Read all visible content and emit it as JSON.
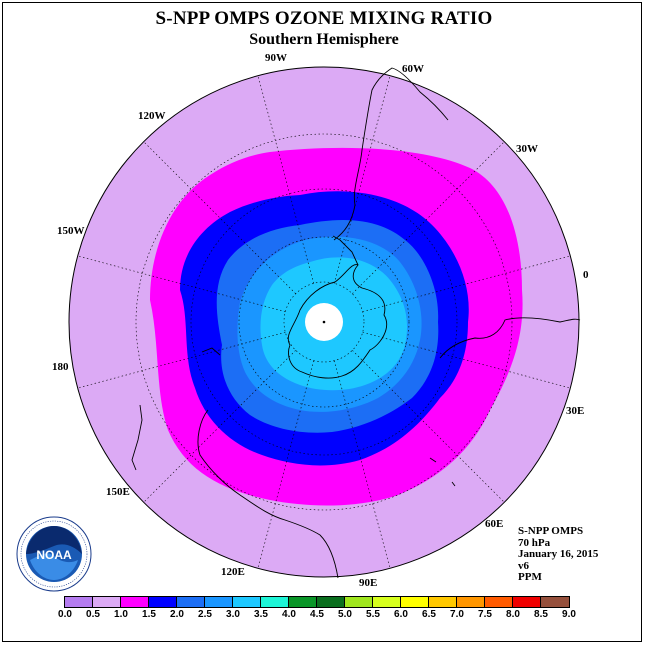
{
  "header": {
    "title": "S-NPP OMPS OZONE MIXING RATIO",
    "subtitle": "Southern Hemisphere"
  },
  "map": {
    "projection": "south-polar-stereographic",
    "longitude_labels": [
      {
        "id": "90w",
        "text": "90W"
      },
      {
        "id": "60w",
        "text": "60W"
      },
      {
        "id": "120w",
        "text": "120W"
      },
      {
        "id": "30w",
        "text": "30W"
      },
      {
        "id": "150w",
        "text": "150W"
      },
      {
        "id": "0",
        "text": "0"
      },
      {
        "id": "180",
        "text": "180"
      },
      {
        "id": "30e",
        "text": "30E"
      },
      {
        "id": "150e",
        "text": "150E"
      },
      {
        "id": "60e",
        "text": "60E"
      },
      {
        "id": "120e",
        "text": "120E"
      },
      {
        "id": "90e",
        "text": "90E"
      }
    ],
    "colors": {
      "band_0_5_to_1_0": "#dcaaf5",
      "band_1_0_to_1_5": "#ff00ff",
      "band_1_5_to_2_0": "#0000ff",
      "band_2_0_to_2_5": "#1c6ef5",
      "band_2_5_to_3_0": "#1a96ff",
      "band_3_0_to_3_5": "#1ec8ff",
      "polar_night": "#ffffff"
    }
  },
  "info": {
    "lines": [
      "S-NPP OMPS",
      "70 hPa",
      "January 16, 2015",
      "v6",
      "PPM"
    ]
  },
  "logo": {
    "text": "NOAA",
    "ring_text": "NATIONAL OCEANIC AND ATMOSPHERIC ADMINISTRATION · U.S. DEPARTMENT OF COMMERCE"
  },
  "colorbar": {
    "unit": "PPM",
    "colors": [
      "#b57cf0",
      "#dcaaf5",
      "#ff00ff",
      "#0000ff",
      "#1c6ef5",
      "#1a96ff",
      "#1ec8ff",
      "#1ef5d7",
      "#0a9628",
      "#0a6e1e",
      "#a0e61e",
      "#d7ff1e",
      "#ffff00",
      "#ffc800",
      "#ff9600",
      "#ff5a00",
      "#f00000",
      "#96503c"
    ],
    "ticks": [
      "0.0",
      "0.5",
      "1.0",
      "1.5",
      "2.0",
      "2.5",
      "3.0",
      "3.5",
      "4.0",
      "4.5",
      "5.0",
      "5.5",
      "6.0",
      "6.5",
      "7.0",
      "7.5",
      "8.0",
      "8.5",
      "9.0"
    ]
  }
}
